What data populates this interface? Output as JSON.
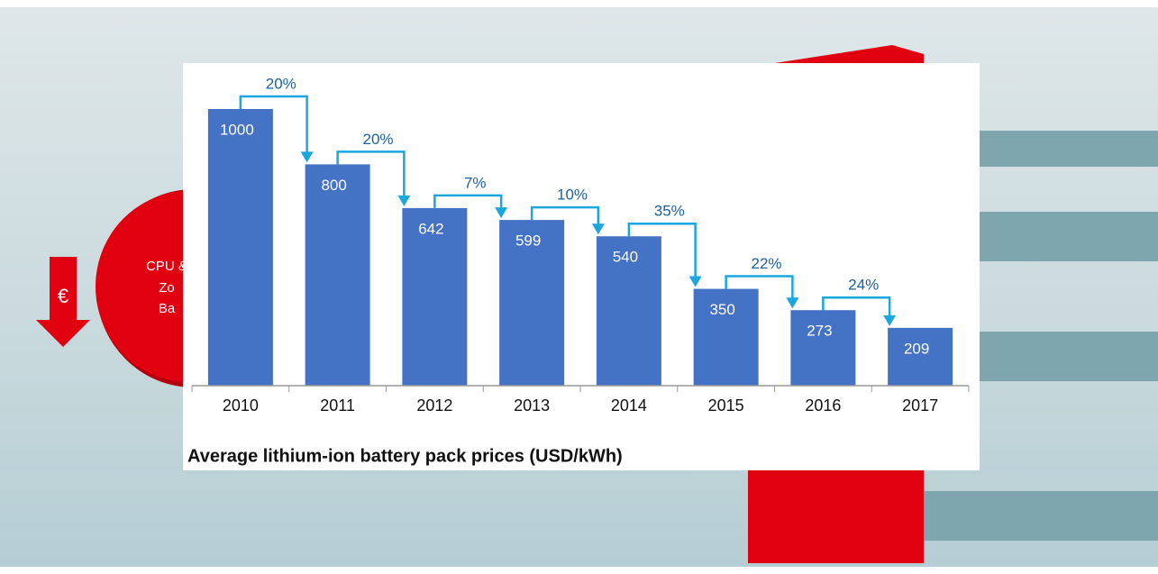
{
  "slide": {
    "arrow_symbol": "€",
    "circle_lines": [
      "CPU &",
      "Zo",
      "Ba"
    ]
  },
  "chart_data": {
    "type": "bar",
    "title": "Average lithium-ion battery pack prices (USD/kWh)",
    "categories": [
      "2010",
      "2011",
      "2012",
      "2013",
      "2014",
      "2015",
      "2016",
      "2017"
    ],
    "values": [
      1000,
      800,
      642,
      599,
      540,
      350,
      273,
      209
    ],
    "color": "#4472c4",
    "annotations": [
      "20%",
      "20%",
      "7%",
      "10%",
      "35%",
      "22%",
      "24%"
    ],
    "annotation_color": "#1ba6dd"
  }
}
